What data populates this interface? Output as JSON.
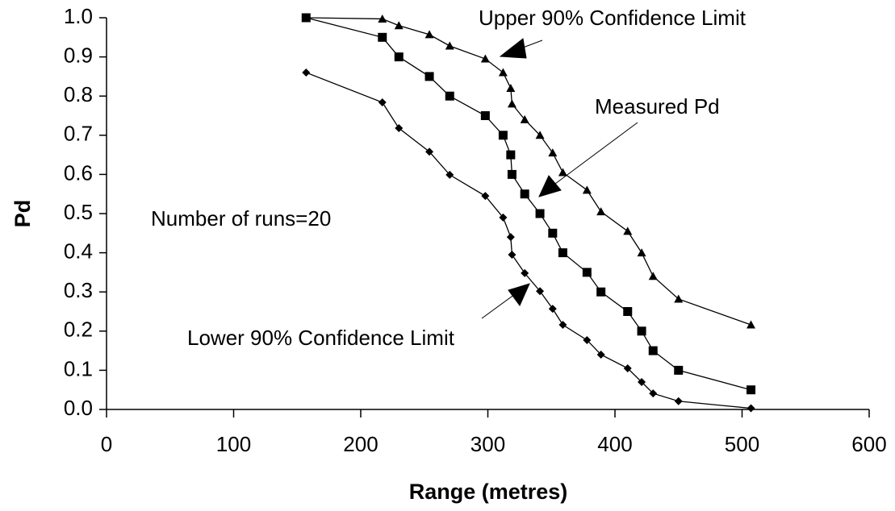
{
  "chart_data": {
    "type": "line",
    "xlabel": "Range (metres)",
    "ylabel": "Pd",
    "annotations": [
      "Number of runs=20"
    ],
    "x": [
      157,
      217,
      230,
      254,
      270,
      298,
      312,
      318,
      319,
      329,
      341,
      351,
      359,
      378,
      389,
      410,
      421,
      430,
      450,
      507
    ],
    "series": [
      {
        "name": "Upper 90% Confidence Limit",
        "color": "#000000",
        "marker": "triangle",
        "values": [
          1.0,
          0.997,
          0.98,
          0.957,
          0.928,
          0.895,
          0.86,
          0.82,
          0.78,
          0.74,
          0.7,
          0.655,
          0.605,
          0.56,
          0.505,
          0.455,
          0.4,
          0.34,
          0.282,
          0.216
        ]
      },
      {
        "name": "Measured Pd",
        "color": "#000000",
        "marker": "square",
        "values": [
          1.0,
          0.95,
          0.9,
          0.85,
          0.8,
          0.75,
          0.7,
          0.65,
          0.6,
          0.55,
          0.5,
          0.45,
          0.4,
          0.35,
          0.3,
          0.25,
          0.2,
          0.15,
          0.1,
          0.05
        ]
      },
      {
        "name": "Lower 90% Confidence Limit",
        "color": "#000000",
        "marker": "diamond",
        "values": [
          0.86,
          0.784,
          0.718,
          0.658,
          0.599,
          0.545,
          0.49,
          0.44,
          0.395,
          0.348,
          0.302,
          0.257,
          0.216,
          0.177,
          0.14,
          0.105,
          0.07,
          0.041,
          0.021,
          0.003
        ]
      }
    ],
    "xlim": [
      0,
      600
    ],
    "xticks": [
      0,
      100,
      200,
      300,
      400,
      500,
      600
    ],
    "ylim": [
      0,
      1
    ],
    "yticks": [
      {
        "value": 0,
        "label": "0.0"
      },
      0.1,
      0.2,
      0.3,
      0.4,
      0.5,
      0.6,
      0.7,
      0.8,
      0.9,
      {
        "value": 1,
        "label": "1.0"
      }
    ],
    "grid": false
  }
}
